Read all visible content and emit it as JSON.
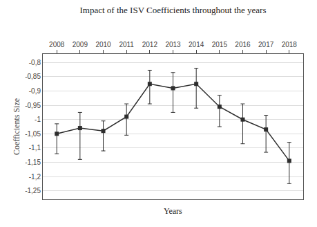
{
  "chart_data": {
    "type": "line",
    "title": "Impact of the ISV Coefficients throughout the years",
    "xlabel": "Years",
    "ylabel": "Coefficients Size",
    "x": [
      2008,
      2009,
      2010,
      2011,
      2012,
      2013,
      2014,
      2015,
      2016,
      2017,
      2018
    ],
    "values": [
      -1.05,
      -1.03,
      -1.04,
      -0.99,
      -0.875,
      -0.89,
      -0.875,
      -0.955,
      -1.0,
      -1.035,
      -1.145
    ],
    "error_lower": [
      0.07,
      0.11,
      0.07,
      0.065,
      0.07,
      0.085,
      0.085,
      0.07,
      0.085,
      0.08,
      0.08
    ],
    "error_upper": [
      0.035,
      0.055,
      0.035,
      0.045,
      0.048,
      0.055,
      0.055,
      0.04,
      0.055,
      0.05,
      0.065
    ],
    "color": "#2d2d2d",
    "marker": "square",
    "xlim": [
      2007.4,
      2018.6
    ],
    "xticks": [
      2008,
      2009,
      2010,
      2011,
      2012,
      2013,
      2014,
      2015,
      2016,
      2017,
      2018
    ],
    "ylim": [
      -1.28,
      -0.77
    ],
    "yticks": [
      {
        "value": -0.8,
        "label": "-0,8"
      },
      {
        "value": -0.85,
        "label": "-0,85"
      },
      {
        "value": -0.9,
        "label": "-0,9"
      },
      {
        "value": -0.95,
        "label": "-0,95"
      },
      -1,
      {
        "value": -1.05,
        "label": "-1,05"
      },
      {
        "value": -1.1,
        "label": "-1,1"
      },
      {
        "value": -1.15,
        "label": "-1,15"
      },
      {
        "value": -1.2,
        "label": "-1,2"
      },
      {
        "value": -1.25,
        "label": "-1,25"
      }
    ],
    "grid": true
  }
}
